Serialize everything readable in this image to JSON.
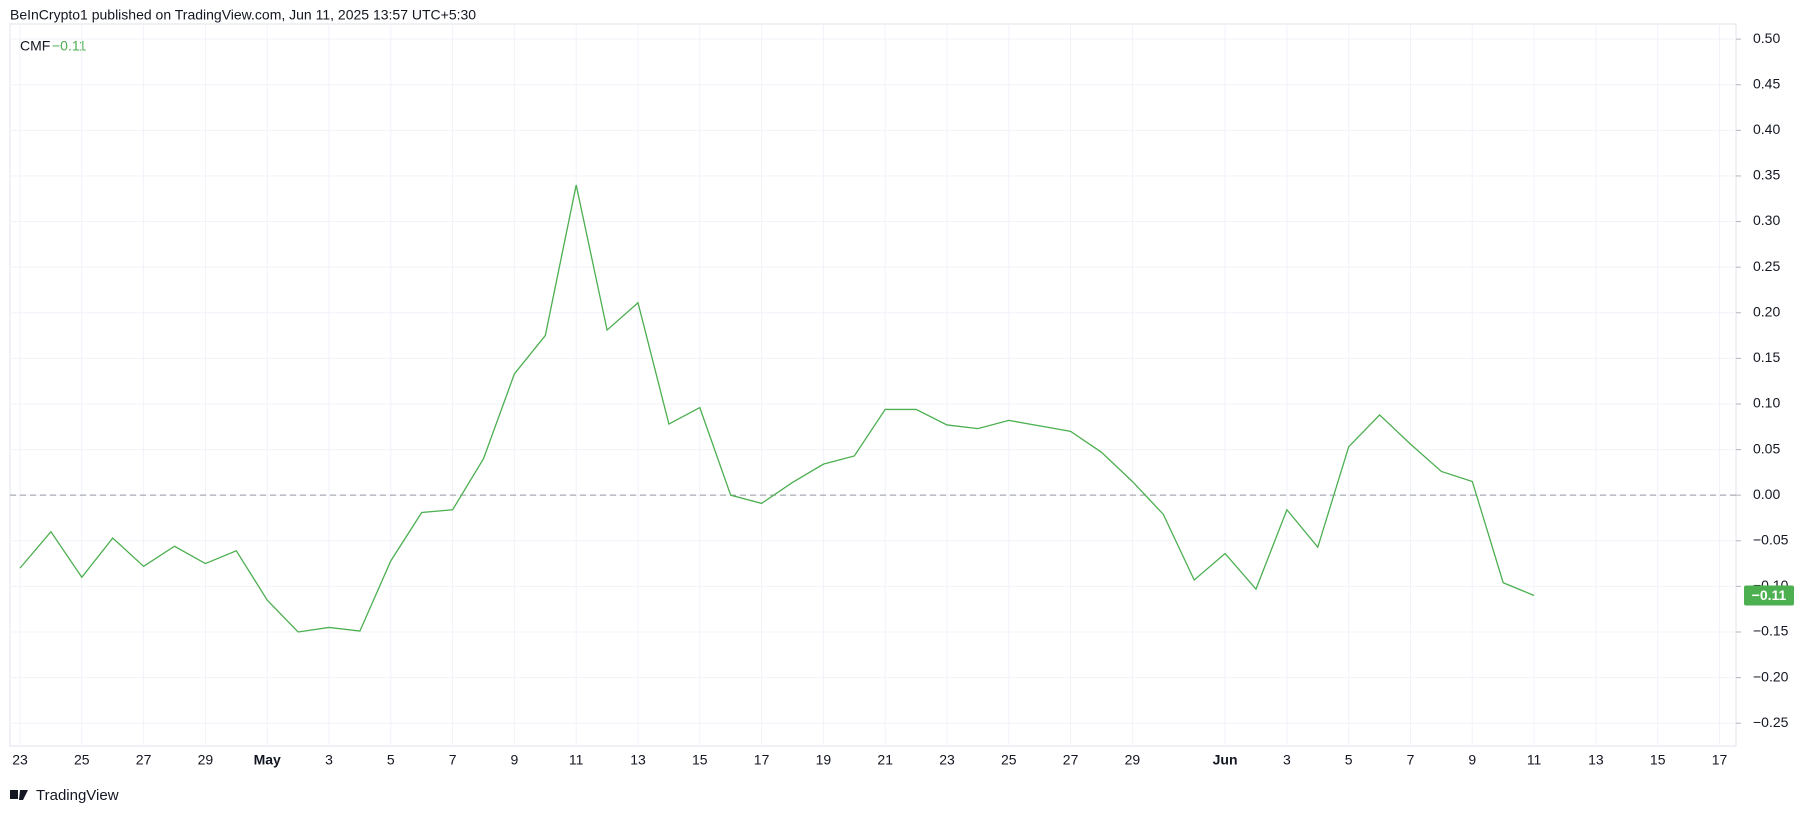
{
  "header": "BeInCrypto1 published on TradingView.com, Jun 11, 2025 13:57 UTC+5:30",
  "footer": "TradingView",
  "chart_data": {
    "type": "line",
    "legend_name": "CMF",
    "legend_value": "−0.11",
    "categories": [
      "23",
      null,
      "25",
      null,
      "27",
      null,
      "29",
      null,
      "May",
      null,
      "3",
      null,
      "5",
      null,
      "7",
      null,
      "9",
      null,
      "11",
      null,
      "13",
      null,
      "15",
      null,
      "17",
      null,
      "19",
      null,
      "21",
      null,
      "23",
      null,
      "25",
      null,
      "27",
      null,
      "29",
      null,
      null,
      "Jun",
      null,
      "3",
      null,
      "5",
      null,
      "7",
      null,
      "9",
      null,
      "11",
      null,
      "13",
      null,
      "15",
      null,
      "17"
    ],
    "series": [
      {
        "name": "CMF",
        "color": "#4caf50",
        "values": [
          -0.08,
          -0.04,
          -0.09,
          -0.047,
          -0.078,
          -0.056,
          -0.075,
          -0.061,
          -0.115,
          -0.15,
          -0.145,
          -0.149,
          -0.072,
          -0.019,
          -0.016,
          0.04,
          0.133,
          0.175,
          0.34,
          0.181,
          0.211,
          0.078,
          0.096,
          0.0,
          -0.009,
          0.014,
          0.034,
          0.043,
          0.094,
          0.094,
          0.077,
          0.073,
          0.082,
          0.076,
          0.07,
          0.047,
          0.015,
          -0.021,
          -0.093,
          -0.064,
          -0.103,
          -0.016,
          -0.057,
          0.053,
          0.088,
          0.056,
          0.026,
          0.015,
          -0.096,
          -0.11,
          null,
          null,
          null,
          null,
          null,
          null
        ]
      }
    ],
    "last_value_label": "−0.11",
    "zero_line": 0,
    "ylim": [
      -0.275,
      0.51
    ],
    "yticks": [
      {
        "value": 0.5,
        "label": "0.50"
      },
      {
        "value": 0.45,
        "label": "0.45"
      },
      {
        "value": 0.4,
        "label": "0.40"
      },
      {
        "value": 0.35,
        "label": "0.35"
      },
      {
        "value": 0.3,
        "label": "0.30"
      },
      {
        "value": 0.25,
        "label": "0.25"
      },
      {
        "value": 0.2,
        "label": "0.20"
      },
      {
        "value": 0.15,
        "label": "0.15"
      },
      {
        "value": 0.1,
        "label": "0.10"
      },
      {
        "value": 0.05,
        "label": "0.05"
      },
      {
        "value": 0,
        "label": "0.00"
      },
      {
        "value": -0.05,
        "label": "−0.05"
      },
      {
        "value": -0.1,
        "label": "−0.10"
      },
      {
        "value": -0.15,
        "label": "−0.15"
      },
      {
        "value": -0.2,
        "label": "−0.20"
      },
      {
        "value": -0.25,
        "label": "−0.25"
      }
    ],
    "grid": true
  }
}
